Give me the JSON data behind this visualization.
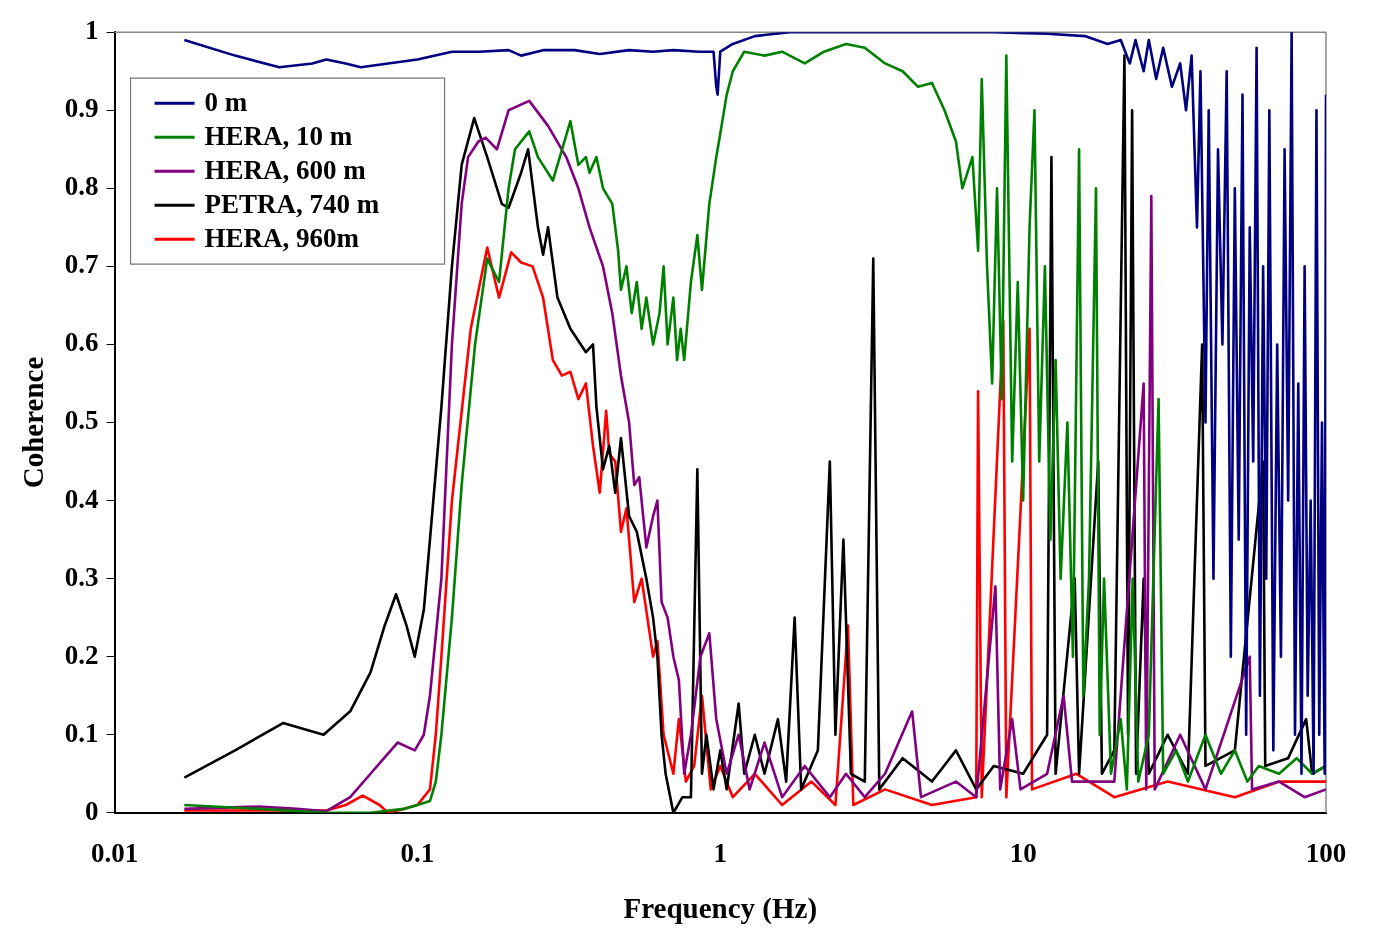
{
  "chart_data": {
    "type": "line",
    "xlabel": "Frequency (Hz)",
    "ylabel": "Coherence",
    "log": "x",
    "legend": "top left",
    "xlim": [
      0.01,
      100
    ],
    "xticks": [
      0.01,
      0.1,
      1,
      10,
      100
    ],
    "ylim": [
      0,
      1
    ],
    "yticks": [
      0,
      0.1,
      0.2,
      0.3,
      0.4,
      0.5,
      0.6,
      0.7,
      0.8,
      0.9,
      1
    ],
    "series": [
      {
        "name": "0 m",
        "color": "#000080",
        "x": [
          0.017,
          0.025,
          0.035,
          0.045,
          0.05,
          0.058,
          0.065,
          0.08,
          0.1,
          0.13,
          0.16,
          0.2,
          0.22,
          0.26,
          0.33,
          0.4,
          0.5,
          0.6,
          0.7,
          0.85,
          0.95,
          0.97,
          0.98,
          1.0,
          1.1,
          1.3,
          1.7,
          3,
          5,
          8,
          12,
          16,
          19,
          21,
          22.5,
          23.5,
          25,
          26,
          27.5,
          29,
          31,
          33,
          34.5,
          36,
          37.5,
          38.5,
          40,
          41,
          42.5,
          44,
          45.5,
          47,
          48.5,
          50,
          51.5,
          53,
          54.5,
          56,
          57.5,
          59,
          60.5,
          62,
          63.5,
          65,
          67,
          69,
          71,
          73,
          75,
          77,
          79,
          81,
          83,
          85,
          87,
          89,
          91,
          93,
          95,
          97,
          99,
          100
        ],
        "values": [
          0.99,
          0.97,
          0.955,
          0.96,
          0.965,
          0.96,
          0.955,
          0.96,
          0.965,
          0.975,
          0.975,
          0.977,
          0.97,
          0.977,
          0.977,
          0.972,
          0.977,
          0.975,
          0.977,
          0.975,
          0.975,
          0.93,
          0.92,
          0.975,
          0.985,
          0.995,
          1.0,
          1.0,
          1.0,
          1.0,
          0.998,
          0.995,
          0.985,
          0.99,
          0.96,
          0.99,
          0.95,
          0.99,
          0.94,
          0.98,
          0.93,
          0.96,
          0.9,
          0.97,
          0.75,
          0.95,
          0.5,
          0.9,
          0.3,
          0.85,
          0.6,
          0.95,
          0.2,
          0.8,
          0.35,
          0.92,
          0.1,
          0.75,
          0.45,
          0.98,
          0.15,
          0.7,
          0.3,
          0.9,
          0.08,
          0.6,
          0.2,
          0.85,
          0.4,
          1.0,
          0.1,
          0.55,
          0.05,
          0.7,
          0.15,
          0.4,
          0.05,
          0.9,
          0.1,
          0.5,
          0.05,
          0.92
        ]
      },
      {
        "name": "HERA, 10 m",
        "color": "#008000",
        "x": [
          0.017,
          0.03,
          0.05,
          0.07,
          0.09,
          0.1,
          0.11,
          0.115,
          0.12,
          0.13,
          0.14,
          0.155,
          0.17,
          0.186,
          0.2,
          0.21,
          0.234,
          0.25,
          0.28,
          0.32,
          0.34,
          0.36,
          0.37,
          0.39,
          0.41,
          0.44,
          0.46,
          0.47,
          0.49,
          0.51,
          0.53,
          0.55,
          0.57,
          0.6,
          0.63,
          0.65,
          0.67,
          0.7,
          0.72,
          0.74,
          0.76,
          0.8,
          0.84,
          0.87,
          0.92,
          0.97,
          1.0,
          1.05,
          1.1,
          1.2,
          1.4,
          1.6,
          1.9,
          2.2,
          2.6,
          3,
          3.5,
          4,
          4.5,
          5,
          5.5,
          6,
          6.3,
          6.8,
          7.1,
          7.3,
          7.6,
          7.9,
          8.2,
          8.5,
          8.8,
          9.2,
          9.6,
          10.0,
          10.5,
          10.9,
          11.3,
          11.8,
          12.3,
          12.8,
          13.3,
          14.0,
          14.6,
          15.3,
          15.8,
          16.5,
          17.4,
          17.9,
          18.5,
          19.5,
          21,
          22,
          23,
          24,
          26,
          28,
          29,
          32,
          35,
          40,
          45,
          50,
          55,
          60,
          70,
          80,
          90,
          100
        ],
        "values": [
          0.01,
          0.005,
          0.0,
          0.0,
          0.005,
          0.01,
          0.015,
          0.04,
          0.1,
          0.25,
          0.42,
          0.6,
          0.71,
          0.68,
          0.8,
          0.85,
          0.873,
          0.84,
          0.81,
          0.886,
          0.83,
          0.84,
          0.82,
          0.84,
          0.8,
          0.78,
          0.72,
          0.67,
          0.7,
          0.64,
          0.68,
          0.62,
          0.66,
          0.6,
          0.64,
          0.7,
          0.6,
          0.66,
          0.58,
          0.62,
          0.58,
          0.68,
          0.74,
          0.67,
          0.78,
          0.84,
          0.87,
          0.92,
          0.95,
          0.975,
          0.97,
          0.975,
          0.96,
          0.975,
          0.985,
          0.98,
          0.96,
          0.95,
          0.93,
          0.935,
          0.9,
          0.86,
          0.8,
          0.84,
          0.72,
          0.94,
          0.7,
          0.55,
          0.8,
          0.53,
          0.97,
          0.45,
          0.68,
          0.4,
          0.75,
          0.9,
          0.45,
          0.7,
          0.35,
          0.58,
          0.3,
          0.5,
          0.2,
          0.85,
          0.15,
          0.3,
          0.8,
          0.1,
          0.3,
          0.05,
          0.12,
          0.03,
          0.3,
          0.04,
          0.1,
          0.53,
          0.05,
          0.08,
          0.04,
          0.1,
          0.05,
          0.08,
          0.04,
          0.06,
          0.05,
          0.07,
          0.05,
          0.06
        ]
      },
      {
        "name": "HERA, 600 m",
        "color": "#800080",
        "x": [
          0.017,
          0.03,
          0.04,
          0.05,
          0.06,
          0.07,
          0.086,
          0.098,
          0.105,
          0.11,
          0.12,
          0.13,
          0.14,
          0.147,
          0.159,
          0.168,
          0.183,
          0.2,
          0.234,
          0.27,
          0.31,
          0.34,
          0.37,
          0.41,
          0.44,
          0.47,
          0.5,
          0.52,
          0.54,
          0.57,
          0.6,
          0.62,
          0.64,
          0.67,
          0.7,
          0.73,
          0.76,
          0.8,
          0.86,
          0.92,
          0.97,
          1.05,
          1.15,
          1.25,
          1.4,
          1.6,
          1.9,
          2.3,
          2.6,
          3,
          3.5,
          4.3,
          4.6,
          6,
          7,
          8.1,
          8.4,
          9.2,
          9.8,
          12,
          13.6,
          14.5,
          20,
          25,
          25.5,
          26.5,
          27.2,
          33,
          40,
          56,
          57,
          70,
          85,
          100
        ],
        "values": [
          0.005,
          0.008,
          0.005,
          0.002,
          0.02,
          0.05,
          0.09,
          0.08,
          0.1,
          0.15,
          0.3,
          0.6,
          0.78,
          0.84,
          0.86,
          0.865,
          0.85,
          0.9,
          0.912,
          0.88,
          0.84,
          0.8,
          0.75,
          0.7,
          0.64,
          0.56,
          0.5,
          0.42,
          0.43,
          0.34,
          0.38,
          0.4,
          0.27,
          0.25,
          0.2,
          0.17,
          0.05,
          0.1,
          0.2,
          0.23,
          0.12,
          0.05,
          0.1,
          0.03,
          0.09,
          0.02,
          0.06,
          0.02,
          0.05,
          0.02,
          0.05,
          0.13,
          0.02,
          0.04,
          0.02,
          0.29,
          0.03,
          0.12,
          0.03,
          0.05,
          0.15,
          0.04,
          0.04,
          0.55,
          0.03,
          0.79,
          0.03,
          0.1,
          0.03,
          0.2,
          0.03,
          0.04,
          0.02,
          0.03
        ]
      },
      {
        "name": "PETRA, 740 m",
        "color": "#000000",
        "x": [
          0.017,
          0.025,
          0.036,
          0.049,
          0.06,
          0.07,
          0.078,
          0.085,
          0.092,
          0.098,
          0.105,
          0.11,
          0.12,
          0.13,
          0.14,
          0.154,
          0.17,
          0.19,
          0.2,
          0.22,
          0.232,
          0.25,
          0.26,
          0.27,
          0.29,
          0.32,
          0.36,
          0.38,
          0.39,
          0.41,
          0.43,
          0.45,
          0.47,
          0.5,
          0.53,
          0.57,
          0.6,
          0.62,
          0.64,
          0.66,
          0.7,
          0.75,
          0.8,
          0.84,
          0.87,
          0.9,
          0.95,
          1.0,
          1.05,
          1.15,
          1.2,
          1.3,
          1.4,
          1.55,
          1.65,
          1.76,
          1.85,
          2.1,
          2.3,
          2.4,
          2.55,
          2.7,
          3.0,
          3.2,
          3.35,
          4,
          5,
          6,
          7,
          8,
          10,
          12,
          12.4,
          12.8,
          14.8,
          15.3,
          17.7,
          18.2,
          20,
          21.6,
          22.2,
          22.9,
          23.6,
          25,
          26,
          30,
          35,
          39,
          40,
          50,
          62,
          63,
          75,
          86,
          90,
          100
        ],
        "values": [
          0.045,
          0.08,
          0.115,
          0.1,
          0.13,
          0.18,
          0.24,
          0.28,
          0.24,
          0.2,
          0.26,
          0.35,
          0.52,
          0.7,
          0.83,
          0.89,
          0.84,
          0.78,
          0.775,
          0.82,
          0.85,
          0.75,
          0.715,
          0.75,
          0.66,
          0.62,
          0.59,
          0.6,
          0.52,
          0.44,
          0.47,
          0.41,
          0.48,
          0.38,
          0.36,
          0.3,
          0.25,
          0.2,
          0.1,
          0.05,
          0.0,
          0.02,
          0.02,
          0.44,
          0.05,
          0.1,
          0.03,
          0.08,
          0.03,
          0.14,
          0.05,
          0.1,
          0.05,
          0.12,
          0.04,
          0.25,
          0.03,
          0.08,
          0.45,
          0.1,
          0.35,
          0.05,
          0.04,
          0.71,
          0.03,
          0.07,
          0.04,
          0.08,
          0.03,
          0.06,
          0.05,
          0.1,
          0.84,
          0.05,
          0.3,
          0.05,
          0.45,
          0.05,
          0.08,
          0.97,
          0.1,
          0.9,
          0.05,
          0.3,
          0.05,
          0.1,
          0.05,
          0.6,
          0.06,
          0.08,
          0.45,
          0.06,
          0.07,
          0.12,
          0.05,
          0.06
        ]
      },
      {
        "name": "HERA, 960m",
        "color": "#ff0000",
        "x": [
          0.017,
          0.05,
          0.058,
          0.066,
          0.075,
          0.08,
          0.09,
          0.1,
          0.11,
          0.115,
          0.12,
          0.13,
          0.15,
          0.17,
          0.186,
          0.204,
          0.22,
          0.24,
          0.26,
          0.28,
          0.3,
          0.32,
          0.34,
          0.36,
          0.38,
          0.4,
          0.42,
          0.43,
          0.45,
          0.47,
          0.49,
          0.5,
          0.52,
          0.55,
          0.6,
          0.62,
          0.65,
          0.7,
          0.73,
          0.77,
          0.82,
          0.87,
          0.93,
          1.0,
          1.1,
          1.3,
          1.6,
          2.0,
          2.4,
          2.64,
          2.75,
          3.5,
          5,
          7.0,
          7.1,
          7.3,
          8.6,
          8.8,
          10.5,
          10.7,
          15,
          20,
          30,
          50,
          70,
          100
        ],
        "values": [
          0.003,
          0.003,
          0.01,
          0.022,
          0.01,
          0.0,
          0.005,
          0.01,
          0.03,
          0.1,
          0.2,
          0.4,
          0.62,
          0.724,
          0.66,
          0.718,
          0.705,
          0.7,
          0.66,
          0.58,
          0.56,
          0.565,
          0.53,
          0.55,
          0.47,
          0.41,
          0.515,
          0.46,
          0.45,
          0.36,
          0.39,
          0.35,
          0.27,
          0.3,
          0.2,
          0.22,
          0.1,
          0.05,
          0.12,
          0.04,
          0.06,
          0.15,
          0.03,
          0.06,
          0.02,
          0.05,
          0.01,
          0.04,
          0.01,
          0.24,
          0.01,
          0.03,
          0.01,
          0.02,
          0.54,
          0.02,
          0.63,
          0.02,
          0.62,
          0.03,
          0.05,
          0.02,
          0.04,
          0.02,
          0.04,
          0.04
        ]
      }
    ]
  }
}
